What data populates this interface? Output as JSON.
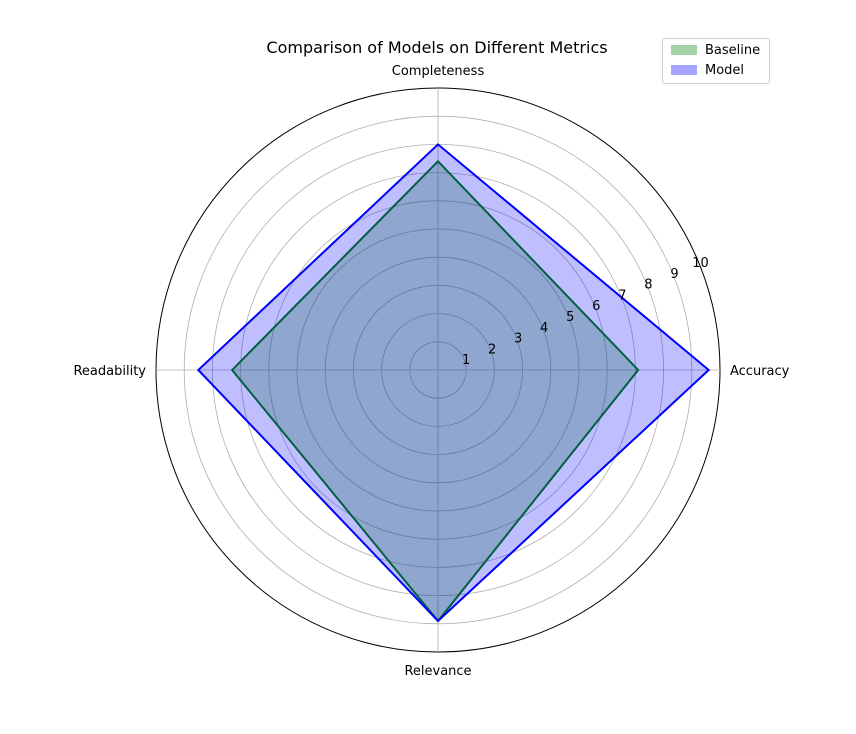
{
  "chart_data": {
    "type": "radar",
    "title": "Comparison of Models on Different Metrics",
    "categories": [
      "Accuracy",
      "Completeness",
      "Readability",
      "Relevance"
    ],
    "rlim": [
      0,
      10
    ],
    "radial_ticks": [
      1,
      2,
      3,
      4,
      5,
      6,
      7,
      8,
      9,
      10
    ],
    "grid": true,
    "legend_position": "top-right",
    "series": [
      {
        "name": "Baseline",
        "values": [
          7.1,
          7.4,
          7.3,
          8.9
        ],
        "line_color": "#008000",
        "fill_color": "#008000",
        "fill_opacity": 0.25
      },
      {
        "name": "Model",
        "values": [
          9.6,
          8.0,
          8.5,
          8.9
        ],
        "line_color": "#0000ff",
        "fill_color": "#0000ff",
        "fill_opacity": 0.25
      }
    ]
  }
}
